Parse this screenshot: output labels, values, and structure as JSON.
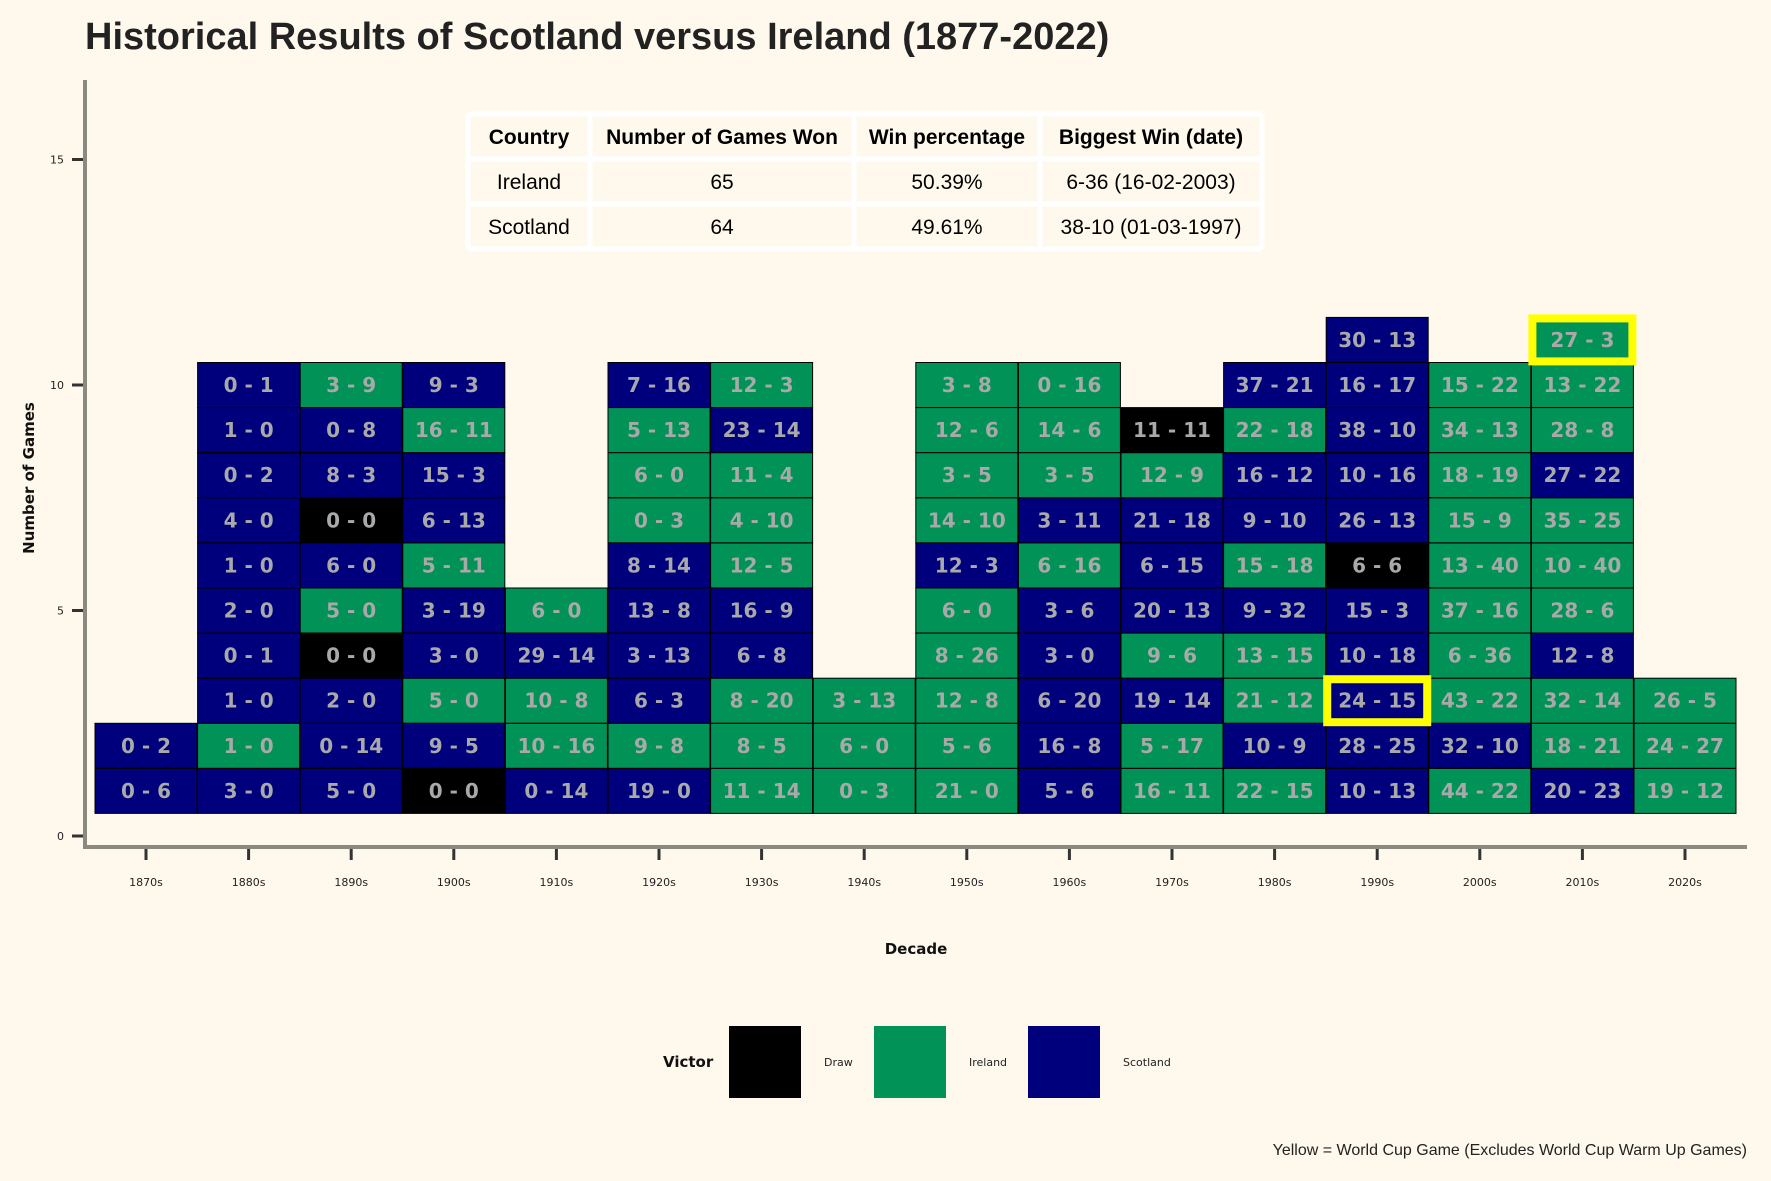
{
  "chart_data": {
    "type": "heatmap",
    "title": "Historical Results of Scotland versus Ireland (1877-2022)",
    "xlabel": "Decade",
    "ylabel": "Number of Games",
    "ylim": [
      0,
      16
    ],
    "yticks": [
      0,
      5,
      10,
      15
    ],
    "categories": [
      "1870s",
      "1880s",
      "1890s",
      "1900s",
      "1910s",
      "1920s",
      "1930s",
      "1940s",
      "1950s",
      "1960s",
      "1970s",
      "1980s",
      "1990s",
      "2000s",
      "2010s",
      "2020s"
    ],
    "colors": {
      "Draw": "#000000",
      "Ireland": "#009257",
      "Scotland": "#00007d",
      "world_cup": "#ffff00"
    },
    "legend": {
      "title": "Victor",
      "position": "bottom",
      "entries": [
        "Draw",
        "Ireland",
        "Scotland"
      ]
    },
    "caption": "Yellow = World Cup Game (Excludes World Cup Warm Up Games)",
    "columns": [
      {
        "decade": "1870s",
        "games": [
          {
            "score": "0 - 6",
            "victor": "Scotland"
          },
          {
            "score": "0 - 2",
            "victor": "Scotland"
          }
        ]
      },
      {
        "decade": "1880s",
        "games": [
          {
            "score": "3 - 0",
            "victor": "Scotland"
          },
          {
            "score": "1 - 0",
            "victor": "Ireland"
          },
          {
            "score": "1 - 0",
            "victor": "Scotland"
          },
          {
            "score": "0 - 1",
            "victor": "Scotland"
          },
          {
            "score": "2 - 0",
            "victor": "Scotland"
          },
          {
            "score": "1 - 0",
            "victor": "Scotland"
          },
          {
            "score": "4 - 0",
            "victor": "Scotland"
          },
          {
            "score": "0 - 2",
            "victor": "Scotland"
          },
          {
            "score": "1 - 0",
            "victor": "Scotland"
          },
          {
            "score": "0 - 1",
            "victor": "Scotland"
          }
        ]
      },
      {
        "decade": "1890s",
        "games": [
          {
            "score": "5 - 0",
            "victor": "Scotland"
          },
          {
            "score": "0 - 14",
            "victor": "Scotland"
          },
          {
            "score": "2 - 0",
            "victor": "Scotland"
          },
          {
            "score": "0 - 0",
            "victor": "Draw"
          },
          {
            "score": "5 - 0",
            "victor": "Ireland"
          },
          {
            "score": "6 - 0",
            "victor": "Scotland"
          },
          {
            "score": "0 - 0",
            "victor": "Draw"
          },
          {
            "score": "8 - 3",
            "victor": "Scotland"
          },
          {
            "score": "0 - 8",
            "victor": "Scotland"
          },
          {
            "score": "3 - 9",
            "victor": "Ireland"
          }
        ]
      },
      {
        "decade": "1900s",
        "games": [
          {
            "score": "0 - 0",
            "victor": "Draw"
          },
          {
            "score": "9 - 5",
            "victor": "Scotland"
          },
          {
            "score": "5 - 0",
            "victor": "Ireland"
          },
          {
            "score": "3 - 0",
            "victor": "Scotland"
          },
          {
            "score": "3 - 19",
            "victor": "Scotland"
          },
          {
            "score": "5 - 11",
            "victor": "Ireland"
          },
          {
            "score": "6 - 13",
            "victor": "Scotland"
          },
          {
            "score": "15 - 3",
            "victor": "Scotland"
          },
          {
            "score": "16 - 11",
            "victor": "Ireland"
          },
          {
            "score": "9 - 3",
            "victor": "Scotland"
          }
        ]
      },
      {
        "decade": "1910s",
        "games": [
          {
            "score": "0 - 14",
            "victor": "Scotland"
          },
          {
            "score": "10 - 16",
            "victor": "Ireland"
          },
          {
            "score": "10 - 8",
            "victor": "Ireland"
          },
          {
            "score": "29 - 14",
            "victor": "Scotland"
          },
          {
            "score": "6 - 0",
            "victor": "Ireland"
          }
        ]
      },
      {
        "decade": "1920s",
        "games": [
          {
            "score": "19 - 0",
            "victor": "Scotland"
          },
          {
            "score": "9 - 8",
            "victor": "Ireland"
          },
          {
            "score": "6 - 3",
            "victor": "Scotland"
          },
          {
            "score": "3 - 13",
            "victor": "Scotland"
          },
          {
            "score": "13 - 8",
            "victor": "Scotland"
          },
          {
            "score": "8 - 14",
            "victor": "Scotland"
          },
          {
            "score": "0 - 3",
            "victor": "Ireland"
          },
          {
            "score": "6 - 0",
            "victor": "Ireland"
          },
          {
            "score": "5 - 13",
            "victor": "Ireland"
          },
          {
            "score": "7 - 16",
            "victor": "Scotland"
          }
        ]
      },
      {
        "decade": "1930s",
        "games": [
          {
            "score": "11 - 14",
            "victor": "Ireland"
          },
          {
            "score": "8 - 5",
            "victor": "Ireland"
          },
          {
            "score": "8 - 20",
            "victor": "Ireland"
          },
          {
            "score": "6 - 8",
            "victor": "Scotland"
          },
          {
            "score": "16 - 9",
            "victor": "Scotland"
          },
          {
            "score": "12 - 5",
            "victor": "Ireland"
          },
          {
            "score": "4 - 10",
            "victor": "Ireland"
          },
          {
            "score": "11 - 4",
            "victor": "Ireland"
          },
          {
            "score": "23 - 14",
            "victor": "Scotland"
          },
          {
            "score": "12 - 3",
            "victor": "Ireland"
          }
        ]
      },
      {
        "decade": "1940s",
        "games": [
          {
            "score": "0 - 3",
            "victor": "Ireland"
          },
          {
            "score": "6 - 0",
            "victor": "Ireland"
          },
          {
            "score": "3 - 13",
            "victor": "Ireland"
          }
        ]
      },
      {
        "decade": "1950s",
        "games": [
          {
            "score": "21 - 0",
            "victor": "Ireland"
          },
          {
            "score": "5 - 6",
            "victor": "Ireland"
          },
          {
            "score": "12 - 8",
            "victor": "Ireland"
          },
          {
            "score": "8 - 26",
            "victor": "Ireland"
          },
          {
            "score": "6 - 0",
            "victor": "Ireland"
          },
          {
            "score": "12 - 3",
            "victor": "Scotland"
          },
          {
            "score": "14 - 10",
            "victor": "Ireland"
          },
          {
            "score": "3 - 5",
            "victor": "Ireland"
          },
          {
            "score": "12 - 6",
            "victor": "Ireland"
          },
          {
            "score": "3 - 8",
            "victor": "Ireland"
          }
        ]
      },
      {
        "decade": "1960s",
        "games": [
          {
            "score": "5 - 6",
            "victor": "Scotland"
          },
          {
            "score": "16 - 8",
            "victor": "Scotland"
          },
          {
            "score": "6 - 20",
            "victor": "Scotland"
          },
          {
            "score": "3 - 0",
            "victor": "Scotland"
          },
          {
            "score": "3 - 6",
            "victor": "Scotland"
          },
          {
            "score": "6 - 16",
            "victor": "Ireland"
          },
          {
            "score": "3 - 11",
            "victor": "Scotland"
          },
          {
            "score": "3 - 5",
            "victor": "Ireland"
          },
          {
            "score": "14 - 6",
            "victor": "Ireland"
          },
          {
            "score": "0 - 16",
            "victor": "Ireland"
          }
        ]
      },
      {
        "decade": "1970s",
        "games": [
          {
            "score": "16 - 11",
            "victor": "Ireland"
          },
          {
            "score": "5 - 17",
            "victor": "Ireland"
          },
          {
            "score": "19 - 14",
            "victor": "Scotland"
          },
          {
            "score": "9 - 6",
            "victor": "Ireland"
          },
          {
            "score": "20 - 13",
            "victor": "Scotland"
          },
          {
            "score": "6 - 15",
            "victor": "Scotland"
          },
          {
            "score": "21 - 18",
            "victor": "Scotland"
          },
          {
            "score": "12 - 9",
            "victor": "Ireland"
          },
          {
            "score": "11 - 11",
            "victor": "Draw"
          }
        ]
      },
      {
        "decade": "1980s",
        "games": [
          {
            "score": "22 - 15",
            "victor": "Ireland"
          },
          {
            "score": "10 - 9",
            "victor": "Scotland"
          },
          {
            "score": "21 - 12",
            "victor": "Ireland"
          },
          {
            "score": "13 - 15",
            "victor": "Ireland"
          },
          {
            "score": "9 - 32",
            "victor": "Scotland"
          },
          {
            "score": "15 - 18",
            "victor": "Ireland"
          },
          {
            "score": "9 - 10",
            "victor": "Scotland"
          },
          {
            "score": "16 - 12",
            "victor": "Scotland"
          },
          {
            "score": "22 - 18",
            "victor": "Ireland"
          },
          {
            "score": "37 - 21",
            "victor": "Scotland"
          }
        ]
      },
      {
        "decade": "1990s",
        "games": [
          {
            "score": "10 - 13",
            "victor": "Scotland"
          },
          {
            "score": "28 - 25",
            "victor": "Scotland"
          },
          {
            "score": "24 - 15",
            "victor": "Scotland",
            "world_cup": true
          },
          {
            "score": "10 - 18",
            "victor": "Scotland"
          },
          {
            "score": "15 - 3",
            "victor": "Scotland"
          },
          {
            "score": "6 - 6",
            "victor": "Draw"
          },
          {
            "score": "26 - 13",
            "victor": "Scotland"
          },
          {
            "score": "10 - 16",
            "victor": "Scotland"
          },
          {
            "score": "38 - 10",
            "victor": "Scotland"
          },
          {
            "score": "16 - 17",
            "victor": "Scotland"
          },
          {
            "score": "30 - 13",
            "victor": "Scotland"
          }
        ]
      },
      {
        "decade": "2000s",
        "games": [
          {
            "score": "44 - 22",
            "victor": "Ireland"
          },
          {
            "score": "32 - 10",
            "victor": "Scotland"
          },
          {
            "score": "43 - 22",
            "victor": "Ireland"
          },
          {
            "score": "6 - 36",
            "victor": "Ireland"
          },
          {
            "score": "37 - 16",
            "victor": "Ireland"
          },
          {
            "score": "13 - 40",
            "victor": "Ireland"
          },
          {
            "score": "15 - 9",
            "victor": "Ireland"
          },
          {
            "score": "18 - 19",
            "victor": "Ireland"
          },
          {
            "score": "34 - 13",
            "victor": "Ireland"
          },
          {
            "score": "15 - 22",
            "victor": "Ireland"
          }
        ]
      },
      {
        "decade": "2010s",
        "games": [
          {
            "score": "20 - 23",
            "victor": "Scotland"
          },
          {
            "score": "18 - 21",
            "victor": "Ireland"
          },
          {
            "score": "32 - 14",
            "victor": "Ireland"
          },
          {
            "score": "12 - 8",
            "victor": "Scotland"
          },
          {
            "score": "28 - 6",
            "victor": "Ireland"
          },
          {
            "score": "10 - 40",
            "victor": "Ireland"
          },
          {
            "score": "35 - 25",
            "victor": "Ireland"
          },
          {
            "score": "27 - 22",
            "victor": "Scotland"
          },
          {
            "score": "28 - 8",
            "victor": "Ireland"
          },
          {
            "score": "13 - 22",
            "victor": "Ireland"
          },
          {
            "score": "27 - 3",
            "victor": "Ireland",
            "world_cup": true
          }
        ]
      },
      {
        "decade": "2020s",
        "games": [
          {
            "score": "19 - 12",
            "victor": "Ireland"
          },
          {
            "score": "24 - 27",
            "victor": "Ireland"
          },
          {
            "score": "26 - 5",
            "victor": "Ireland"
          }
        ]
      }
    ]
  },
  "summary_table": {
    "headers": [
      "Country",
      "Number of Games Won",
      "Win percentage",
      "Biggest Win (date)"
    ],
    "rows": [
      [
        "Ireland",
        "65",
        "50.39%",
        "6-36 (16-02-2003)"
      ],
      [
        "Scotland",
        "64",
        "49.61%",
        "38-10 (01-03-1997)"
      ]
    ]
  }
}
